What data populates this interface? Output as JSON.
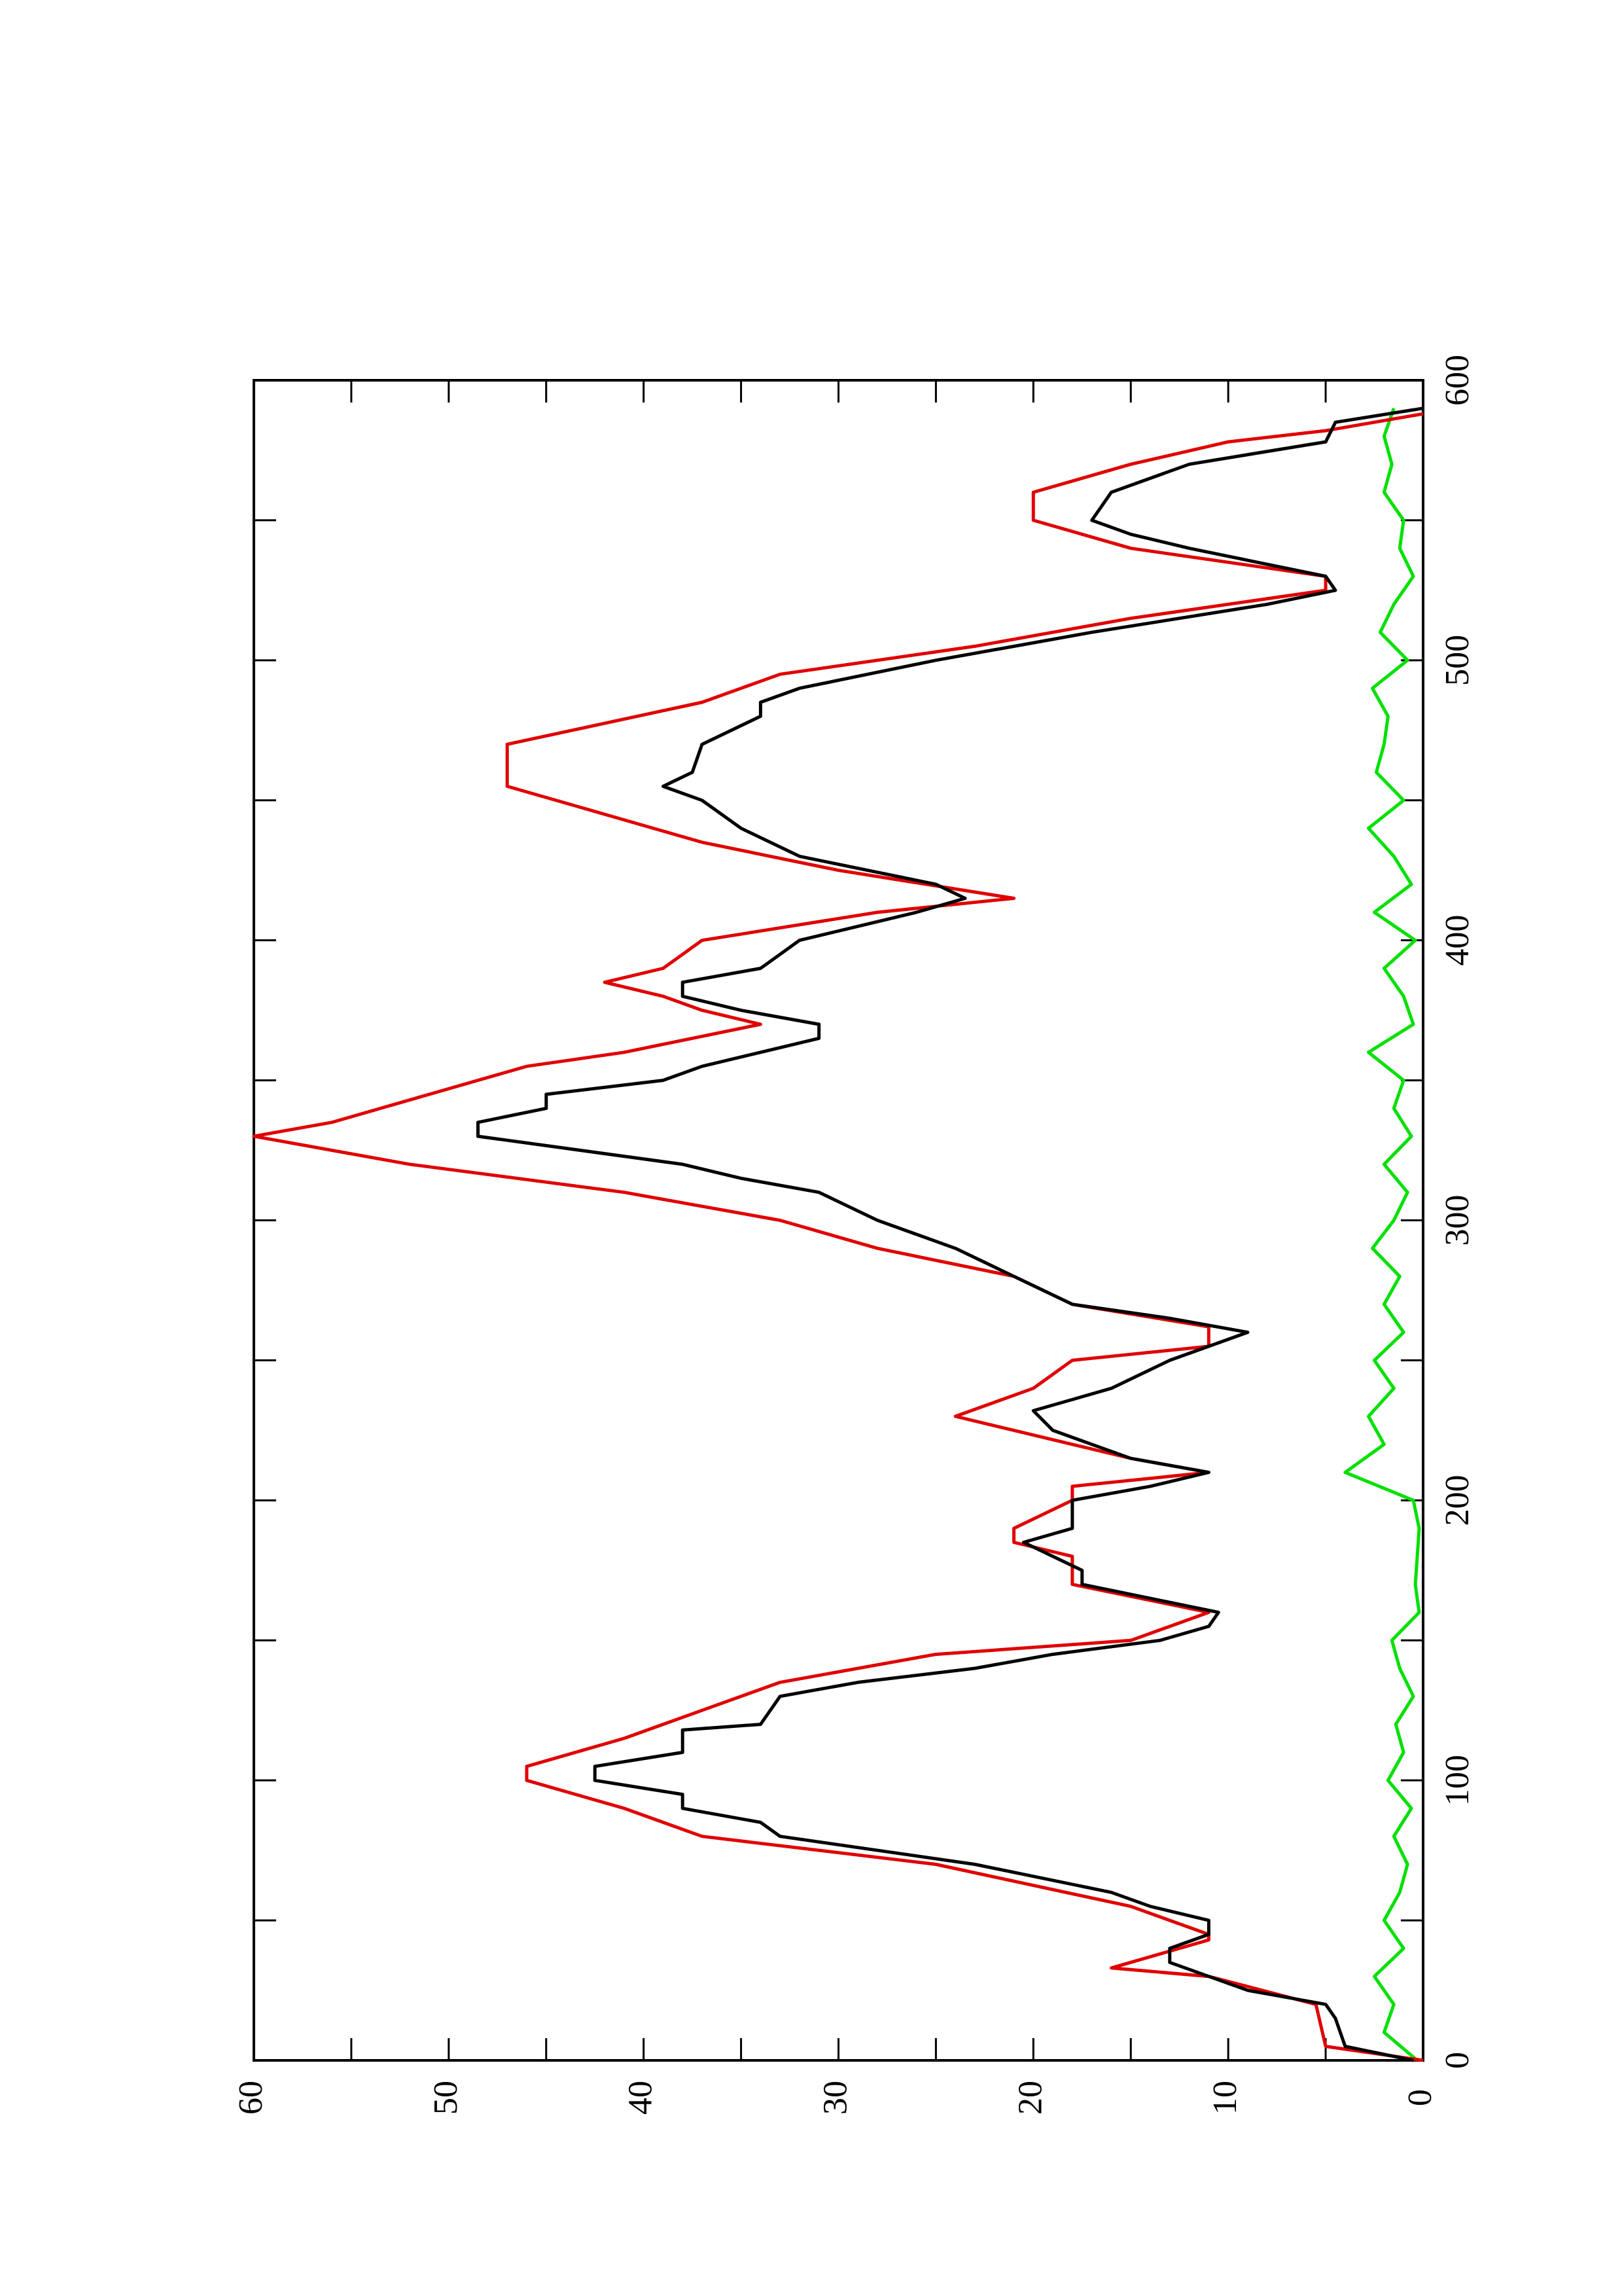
{
  "chart_data": {
    "type": "line",
    "rotated": true,
    "xlim": [
      0,
      600
    ],
    "xticks": [
      0,
      100,
      200,
      300,
      400,
      500,
      600
    ],
    "xminor": [
      50,
      150,
      250,
      350,
      450,
      550
    ],
    "ylim": [
      0,
      60
    ],
    "yticks": [
      0,
      10,
      20,
      30,
      40,
      50,
      60
    ],
    "yminor": [
      5,
      15,
      25,
      35,
      45,
      55
    ],
    "series": [
      {
        "color": "#000000",
        "x": [
          0,
          5,
          15,
          20,
          25,
          30,
          35,
          40,
          45,
          50,
          55,
          60,
          70,
          80,
          85,
          90,
          95,
          100,
          105,
          110,
          118,
          120,
          130,
          135,
          140,
          145,
          150,
          155,
          160,
          165,
          170,
          175,
          185,
          190,
          200,
          205,
          210,
          215,
          220,
          225,
          232,
          240,
          250,
          255,
          260,
          265,
          270,
          280,
          290,
          300,
          310,
          315,
          320,
          330,
          335,
          340,
          345,
          350,
          355,
          360,
          365,
          370,
          375,
          380,
          385,
          390,
          395,
          400,
          410,
          415,
          420,
          430,
          440,
          450,
          455,
          460,
          470,
          480,
          485,
          490,
          500,
          510,
          520,
          525,
          530,
          540,
          545,
          550,
          560,
          570,
          578,
          585,
          590
        ],
        "values": [
          0.5,
          4,
          4.5,
          5,
          9,
          11,
          13,
          13,
          11,
          11,
          14,
          16,
          23,
          33,
          34,
          38,
          38,
          42.5,
          42.5,
          38,
          38,
          34,
          33,
          29,
          23,
          19,
          13.5,
          11,
          10.5,
          14,
          17.5,
          17.5,
          20.5,
          18,
          18,
          14,
          11,
          15,
          17,
          19,
          20,
          16,
          13,
          11,
          9,
          13,
          18,
          21,
          24,
          28,
          31,
          35,
          38,
          48.5,
          48.5,
          45,
          45,
          39,
          37,
          34,
          31,
          31,
          35,
          38,
          38,
          34,
          33,
          32,
          26,
          23.5,
          25,
          32,
          35,
          37,
          39,
          37.5,
          37,
          34,
          34,
          32,
          25,
          17,
          8,
          4.5,
          5,
          12,
          15,
          17,
          16,
          12,
          5,
          4.5,
          0
        ]
      },
      {
        "color": "#e00000",
        "x": [
          0,
          5,
          20,
          30,
          33,
          43,
          45,
          50,
          55,
          70,
          80,
          90,
          100,
          105,
          115,
          125,
          135,
          145,
          150,
          160,
          170,
          180,
          185,
          190,
          200,
          205,
          210,
          215,
          220,
          230,
          240,
          250,
          255,
          262,
          270,
          280,
          290,
          300,
          310,
          320,
          330,
          335,
          345,
          355,
          360,
          370,
          375,
          380,
          385,
          390,
          400,
          410,
          415,
          425,
          435,
          445,
          455,
          470,
          485,
          495,
          505,
          515,
          525,
          530,
          540,
          550,
          560,
          570,
          578,
          582,
          588
        ],
        "values": [
          0,
          5,
          5.5,
          11,
          16,
          11,
          11,
          13,
          15,
          25,
          37,
          41,
          46,
          46,
          41,
          37,
          33,
          25,
          15,
          11,
          18,
          18,
          21,
          21,
          18,
          18,
          11,
          15,
          18,
          24,
          20,
          18,
          11,
          11,
          18,
          21,
          28,
          33,
          41,
          52,
          60,
          56,
          51,
          46,
          41,
          34,
          37,
          39,
          42,
          39,
          37,
          28,
          21,
          30,
          37,
          42,
          47,
          47,
          37,
          33,
          23,
          15,
          5,
          5,
          15,
          20,
          20,
          15,
          10,
          5,
          0
        ]
      },
      {
        "color": "#00e000",
        "x": [
          0,
          10,
          20,
          30,
          40,
          50,
          60,
          70,
          80,
          90,
          100,
          110,
          120,
          130,
          140,
          150,
          160,
          170,
          180,
          190,
          200,
          210,
          220,
          230,
          240,
          250,
          260,
          270,
          280,
          290,
          300,
          310,
          320,
          330,
          340,
          350,
          360,
          370,
          380,
          390,
          400,
          410,
          420,
          430,
          440,
          450,
          460,
          470,
          480,
          490,
          500,
          510,
          520,
          530,
          540,
          550,
          560,
          570,
          580,
          590
        ],
        "values": [
          0.3,
          2,
          1.5,
          2.5,
          1,
          2,
          1.2,
          0.8,
          1.5,
          0.6,
          1.8,
          1,
          1.4,
          0.5,
          1.2,
          1.6,
          0.2,
          0.4,
          0.3,
          0.2,
          0.5,
          4,
          2,
          2.8,
          1.5,
          2.5,
          1,
          2,
          1.2,
          2.6,
          1.5,
          0.8,
          2,
          0.6,
          1.5,
          1,
          2.8,
          0.5,
          1,
          2,
          0.4,
          2.5,
          0.6,
          1.5,
          2.8,
          1,
          2.4,
          2,
          1.8,
          2.6,
          0.8,
          2.2,
          1.5,
          0.5,
          1.2,
          1,
          2,
          1.6,
          2,
          1.5
        ]
      }
    ]
  }
}
